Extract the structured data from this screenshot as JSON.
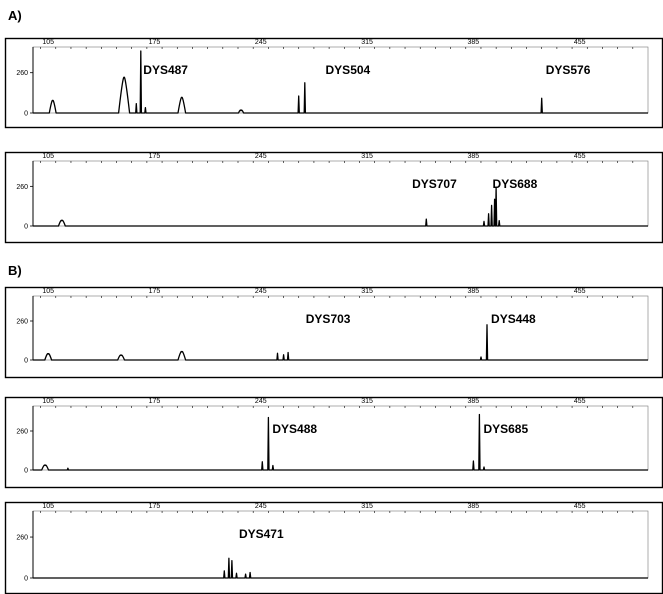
{
  "sections": [
    {
      "label": "A)"
    },
    {
      "label": "B)"
    }
  ],
  "chart_data": [
    {
      "type": "line",
      "section": "A)",
      "xticks": [
        "105",
        "175",
        "245",
        "315",
        "385",
        "455"
      ],
      "yticks": [
        "260",
        "0"
      ],
      "xlim": [
        95,
        500
      ],
      "ylim": [
        0,
        400
      ],
      "markers": [
        {
          "label": "DYS487",
          "x": 165
        },
        {
          "label": "DYS504",
          "x": 285
        },
        {
          "label": "DYS576",
          "x": 430
        }
      ],
      "peaks": [
        {
          "x": 108,
          "h": 80,
          "w": 1.6
        },
        {
          "x": 155,
          "h": 230,
          "w": 2.6
        },
        {
          "x": 163,
          "h": 60,
          "w": 0.5
        },
        {
          "x": 166,
          "h": 400,
          "w": 0.5
        },
        {
          "x": 169,
          "h": 35,
          "w": 0.5
        },
        {
          "x": 193,
          "h": 100,
          "w": 1.8
        },
        {
          "x": 232,
          "h": 15,
          "w": 1.2
        },
        {
          "x": 270,
          "h": 110,
          "w": 0.5
        },
        {
          "x": 274,
          "h": 195,
          "w": 0.5
        },
        {
          "x": 430,
          "h": 95,
          "w": 0.5
        }
      ]
    },
    {
      "type": "line",
      "section": "A)",
      "xticks": [
        "105",
        "175",
        "245",
        "315",
        "385",
        "455"
      ],
      "yticks": [
        "260",
        "0"
      ],
      "xlim": [
        95,
        500
      ],
      "ylim": [
        0,
        400
      ],
      "markers": [
        {
          "label": "DYS707",
          "x": 342
        },
        {
          "label": "DYS688",
          "x": 395
        }
      ],
      "peaks": [
        {
          "x": 114,
          "h": 35,
          "w": 1.6
        },
        {
          "x": 354,
          "h": 45,
          "w": 0.5
        },
        {
          "x": 392,
          "h": 30,
          "w": 0.5
        },
        {
          "x": 395,
          "h": 80,
          "w": 0.5
        },
        {
          "x": 397,
          "h": 135,
          "w": 0.5
        },
        {
          "x": 399,
          "h": 175,
          "w": 0.5
        },
        {
          "x": 400,
          "h": 255,
          "w": 0.5
        },
        {
          "x": 402,
          "h": 35,
          "w": 0.5
        }
      ]
    },
    {
      "type": "line",
      "section": "B)",
      "xticks": [
        "105",
        "175",
        "245",
        "315",
        "385",
        "455"
      ],
      "yticks": [
        "260",
        "0"
      ],
      "xlim": [
        95,
        500
      ],
      "ylim": [
        0,
        400
      ],
      "markers": [
        {
          "label": "DYS703",
          "x": 272
        },
        {
          "label": "DYS448",
          "x": 394
        }
      ],
      "peaks": [
        {
          "x": 105,
          "h": 40,
          "w": 1.6
        },
        {
          "x": 153,
          "h": 30,
          "w": 1.6
        },
        {
          "x": 193,
          "h": 55,
          "w": 1.8
        },
        {
          "x": 256,
          "h": 45,
          "w": 0.5
        },
        {
          "x": 260,
          "h": 35,
          "w": 0.5
        },
        {
          "x": 263,
          "h": 50,
          "w": 0.5
        },
        {
          "x": 390,
          "h": 20,
          "w": 0.5
        },
        {
          "x": 394,
          "h": 235,
          "w": 0.5
        }
      ]
    },
    {
      "type": "line",
      "section": "B)",
      "xticks": [
        "105",
        "175",
        "245",
        "315",
        "385",
        "455"
      ],
      "yticks": [
        "260",
        "0"
      ],
      "xlim": [
        95,
        500
      ],
      "ylim": [
        0,
        400
      ],
      "markers": [
        {
          "label": "DYS488",
          "x": 250
        },
        {
          "label": "DYS685",
          "x": 389
        }
      ],
      "peaks": [
        {
          "x": 103,
          "h": 30,
          "w": 1.6
        },
        {
          "x": 118,
          "h": 12,
          "w": 1.0
        },
        {
          "x": 246,
          "h": 55,
          "w": 0.5
        },
        {
          "x": 250,
          "h": 350,
          "w": 0.5
        },
        {
          "x": 253,
          "h": 30,
          "w": 0.5
        },
        {
          "x": 385,
          "h": 60,
          "w": 0.5
        },
        {
          "x": 389,
          "h": 370,
          "w": 0.5
        },
        {
          "x": 392,
          "h": 20,
          "w": 0.5
        }
      ]
    },
    {
      "type": "line",
      "section": "B)",
      "xticks": [
        "105",
        "175",
        "245",
        "315",
        "385",
        "455"
      ],
      "yticks": [
        "260",
        "0"
      ],
      "xlim": [
        95,
        500
      ],
      "ylim": [
        0,
        400
      ],
      "markers": [
        {
          "label": "DYS471",
          "x": 228
        }
      ],
      "peaks": [
        {
          "x": 221,
          "h": 45,
          "w": 0.5
        },
        {
          "x": 224,
          "h": 125,
          "w": 0.5
        },
        {
          "x": 226,
          "h": 110,
          "w": 0.5
        },
        {
          "x": 229,
          "h": 30,
          "w": 0.5
        },
        {
          "x": 235,
          "h": 25,
          "w": 0.5
        },
        {
          "x": 238,
          "h": 35,
          "w": 0.5
        }
      ]
    }
  ]
}
